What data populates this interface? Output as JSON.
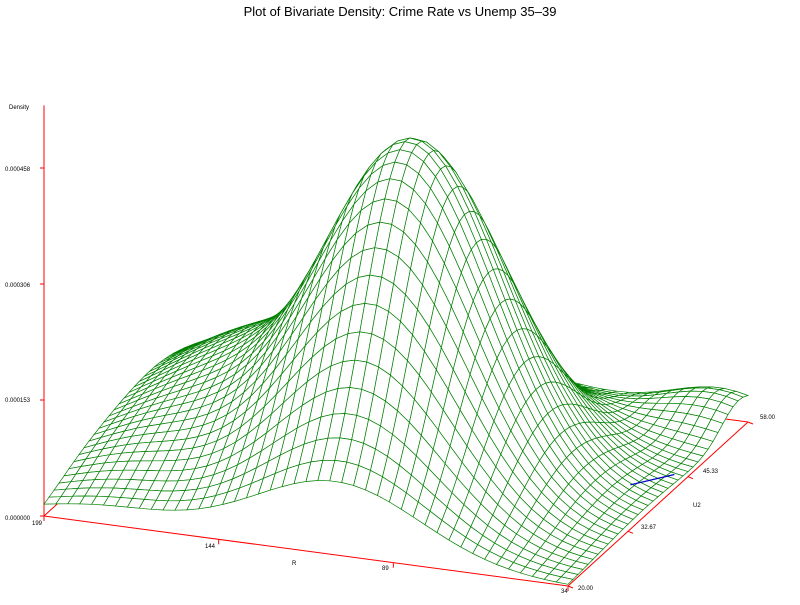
{
  "chart_data": {
    "type": "surface",
    "title": "Plot of Bivariate Density: Crime Rate vs Unemp 35–39",
    "zlabel": "Density",
    "xlabel": "R",
    "ylabel": "U2",
    "z_ticks": [
      "0.000000",
      "0.000153",
      "0.000306",
      "0.000458"
    ],
    "x_ticks": [
      "199",
      "144",
      "89",
      "34"
    ],
    "y_ticks": [
      "20.00",
      "32.67",
      "45.33",
      "58.00"
    ],
    "zlim": [
      0,
      0.000458
    ],
    "xlim": [
      199,
      34
    ],
    "ylim": [
      20,
      58
    ],
    "peak": {
      "R": 107,
      "U2": 36,
      "density": 0.000458
    },
    "colors": {
      "surface": "#007f00",
      "axes": "#ff0000",
      "highlight": "#0000cc",
      "text": "#000000"
    }
  }
}
